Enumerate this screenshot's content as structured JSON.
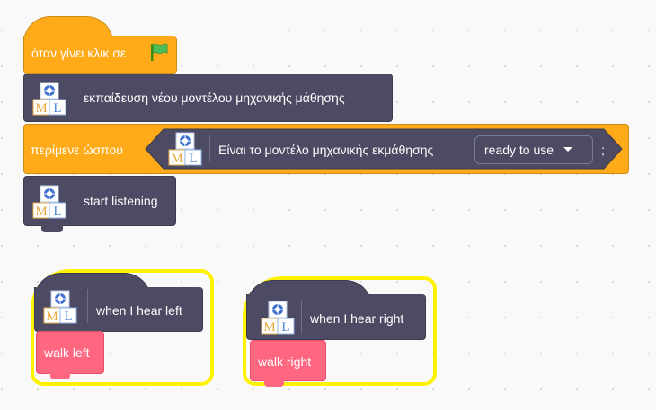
{
  "script1": {
    "hat_label": "όταν γίνει κλικ σε",
    "hat_icon": "green-flag-icon",
    "train_label": "εκπαίδευση νέου μοντέλου μηχανικής μάθησης",
    "wait_label": "περίμενε ώσπου",
    "condition_label": "Είναι το μοντέλο μηχανικής εκμάθησης",
    "condition_value": "ready to use",
    "semicolon": ";",
    "listen_label": "start listening"
  },
  "script2": {
    "hat_label": "when I hear left",
    "action_label": "walk left"
  },
  "script3": {
    "hat_label": "when I hear right",
    "action_label": "walk right"
  },
  "colors": {
    "events": "#FFAB19",
    "control": "#FFAB19",
    "ml_extension": "#4C4B63",
    "custom_block": "#FF6680",
    "highlight": "#FFF200"
  },
  "ml_icon": "ml-extension-icon"
}
